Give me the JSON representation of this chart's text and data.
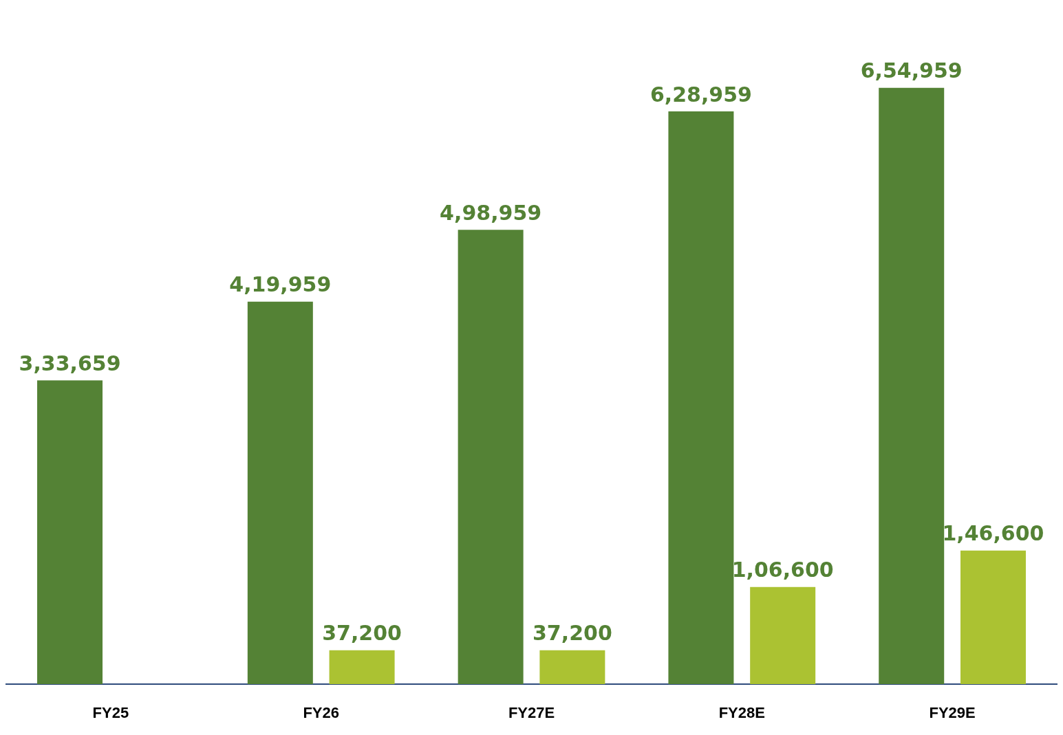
{
  "chart_data": {
    "type": "bar",
    "categories": [
      "FY25",
      "FY26",
      "FY27E",
      "FY28E",
      "FY29E"
    ],
    "series": [
      {
        "color": "#548235",
        "values": [
          333659,
          419959,
          498959,
          628959,
          654959
        ],
        "value_labels": [
          "3,33,659",
          "4,19,959",
          "4,98,959",
          "6,28,959",
          "6,54,959"
        ]
      },
      {
        "color": "#abc232",
        "values": [
          null,
          37200,
          37200,
          106600,
          146600
        ],
        "value_labels": [
          null,
          "37,200",
          "37,200",
          "1,06,600",
          "1,46,600"
        ]
      }
    ]
  }
}
